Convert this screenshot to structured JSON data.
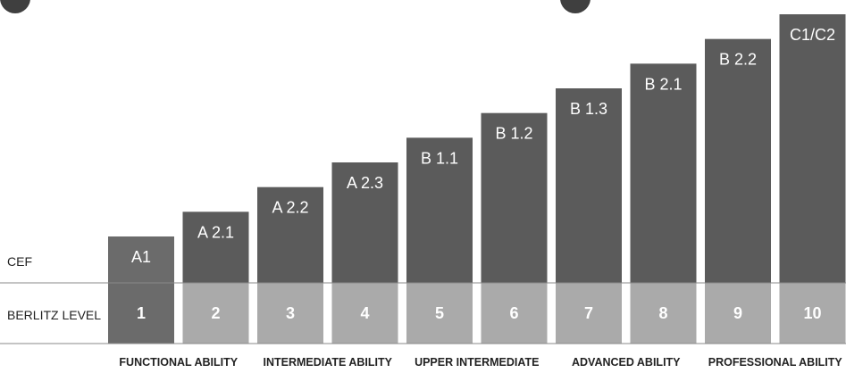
{
  "chart_data": {
    "type": "bar",
    "title": "",
    "row_labels": {
      "cef": "CEF",
      "berlitz": "BERLITZ LEVEL"
    },
    "categories": [
      "1",
      "2",
      "3",
      "4",
      "5",
      "6",
      "7",
      "8",
      "9",
      "10"
    ],
    "cef_levels": [
      "A1",
      "A 2.1",
      "A 2.2",
      "A 2.3",
      "B 1.1",
      "B 1.2",
      "B 1.3",
      "B 2.1",
      "B 2.2",
      "C1/C2"
    ],
    "values": [
      1,
      2,
      3,
      4,
      5,
      6,
      7,
      8,
      9,
      10
    ],
    "ylim": [
      0,
      10
    ],
    "groups": [
      {
        "label": "FUNCTIONAL ABILITY",
        "levels": [
          1,
          2
        ]
      },
      {
        "label": "INTERMEDIATE ABILITY",
        "levels": [
          3,
          4
        ]
      },
      {
        "label": "UPPER INTERMEDIATE",
        "levels": [
          5,
          6
        ]
      },
      {
        "label": "ADVANCED ABILITY",
        "levels": [
          7,
          8
        ]
      },
      {
        "label": "PROFESSIONAL ABILITY",
        "levels": [
          9,
          10
        ]
      }
    ],
    "colors": {
      "bar": "#5b5b5b",
      "first_level_bar": "#6b6b6b",
      "level_cell": "#aaaaaa",
      "label_text": "#ffffff",
      "axis_text": "#222222",
      "rule": "#8a8a8a"
    },
    "grid": false,
    "legend": "none"
  }
}
